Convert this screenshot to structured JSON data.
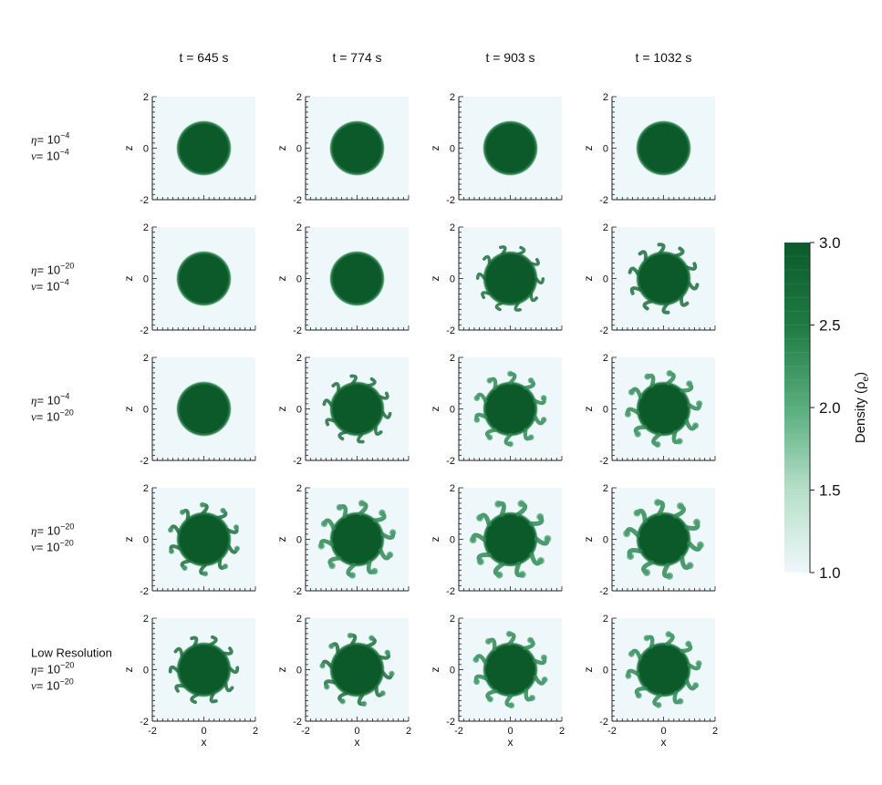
{
  "figure": {
    "columns": [
      {
        "label": "t = 645 s"
      },
      {
        "label": "t = 774 s"
      },
      {
        "label": "t = 903 s"
      },
      {
        "label": "t = 1032 s"
      }
    ],
    "rows": [
      {
        "lines": [
          {
            "sym": "η",
            "eq": "= 10",
            "exp": "−4"
          },
          {
            "sym": "ν",
            "eq": "= 10",
            "exp": "−4"
          }
        ]
      },
      {
        "lines": [
          {
            "sym": "η",
            "eq": "= 10",
            "exp": "−20"
          },
          {
            "sym": "ν",
            "eq": "= 10",
            "exp": "−4"
          }
        ]
      },
      {
        "lines": [
          {
            "sym": "η",
            "eq": "= 10",
            "exp": "−4"
          },
          {
            "sym": "ν",
            "eq": "= 10",
            "exp": "−20"
          }
        ]
      },
      {
        "lines": [
          {
            "sym": "η",
            "eq": "= 10",
            "exp": "−20"
          },
          {
            "sym": "ν",
            "eq": "= 10",
            "exp": "−20"
          }
        ]
      },
      {
        "title": "Low Resolution",
        "lines": [
          {
            "sym": "η",
            "eq": "= 10",
            "exp": "−20"
          },
          {
            "sym": "ν",
            "eq": "= 10",
            "exp": "−20"
          }
        ]
      }
    ],
    "x_label": "x",
    "z_label": "z",
    "tick_labels": [
      "-2",
      "0",
      "2"
    ],
    "colorbar": {
      "title": "Density (ρ",
      "title_sub": "e",
      "title_end": ")",
      "ticks": [
        "3.0",
        "2.5",
        "2.0",
        "1.5",
        "1.0"
      ]
    }
  },
  "chart_data": {
    "type": "heatmap",
    "description_values": "Density maps in x–z plane; blob of high density (3.0) in low density (1.0) background",
    "xlim": [
      -2,
      2
    ],
    "ylim": [
      -2,
      2
    ],
    "xlabel": "x",
    "ylabel": "z",
    "x_ticks": [
      -2,
      0,
      2
    ],
    "y_ticks": [
      -2,
      0,
      2
    ],
    "times_s": [
      645,
      774,
      903,
      1032
    ],
    "cases": [
      {
        "eta": "10^-4",
        "nu": "10^-4"
      },
      {
        "eta": "10^-20",
        "nu": "10^-4"
      },
      {
        "eta": "10^-4",
        "nu": "10^-20"
      },
      {
        "eta": "10^-20",
        "nu": "10^-20"
      },
      {
        "label": "Low Resolution",
        "eta": "10^-20",
        "nu": "10^-20"
      }
    ],
    "blob": {
      "radius": 1.0,
      "density_min": 1.0,
      "density_max": 3.0
    },
    "perturbation_level": [
      [
        0.0,
        0.0,
        0.0,
        0.0
      ],
      [
        0.0,
        0.0,
        0.25,
        0.5
      ],
      [
        0.0,
        0.35,
        0.65,
        0.8
      ],
      [
        0.55,
        0.85,
        1.0,
        1.0
      ],
      [
        0.4,
        0.6,
        0.75,
        0.75
      ]
    ],
    "colorbar": {
      "range": [
        1.0,
        3.0
      ],
      "ticks": [
        1.0,
        1.5,
        2.0,
        2.5,
        3.0
      ],
      "colors": [
        "#eef7fa",
        "#0c5a2a"
      ]
    }
  }
}
